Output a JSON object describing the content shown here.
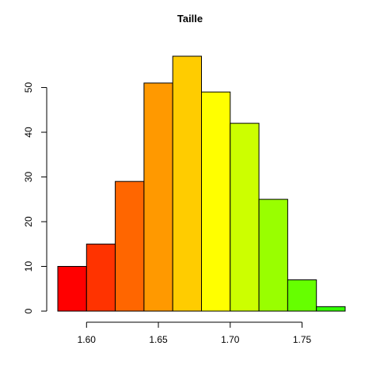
{
  "chart_data": {
    "type": "bar",
    "title": "Taille",
    "xlabel": "",
    "ylabel": "",
    "bins": [
      [
        1.58,
        1.6
      ],
      [
        1.6,
        1.62
      ],
      [
        1.62,
        1.64
      ],
      [
        1.64,
        1.66
      ],
      [
        1.66,
        1.68
      ],
      [
        1.68,
        1.7
      ],
      [
        1.7,
        1.72
      ],
      [
        1.72,
        1.74
      ],
      [
        1.74,
        1.76
      ],
      [
        1.76,
        1.78
      ]
    ],
    "values": [
      10,
      15,
      29,
      51,
      57,
      49,
      42,
      25,
      7,
      1
    ],
    "colors": [
      "#FF0000",
      "#FF3300",
      "#FF6600",
      "#FF9900",
      "#FFCC00",
      "#FFFF00",
      "#CCFF00",
      "#99FF00",
      "#66FF00",
      "#33FF00"
    ],
    "xlim": [
      1.58,
      1.78
    ],
    "ylim": [
      0,
      57
    ],
    "x_ticks": [
      {
        "value": 1.6,
        "label": "1.60"
      },
      {
        "value": 1.65,
        "label": "1.65"
      },
      {
        "value": 1.7,
        "label": "1.70"
      },
      {
        "value": 1.75,
        "label": "1.75"
      }
    ],
    "y_ticks": [
      {
        "value": 0,
        "label": "0"
      },
      {
        "value": 10,
        "label": "10"
      },
      {
        "value": 20,
        "label": "20"
      },
      {
        "value": 30,
        "label": "30"
      },
      {
        "value": 40,
        "label": "40"
      },
      {
        "value": 50,
        "label": "50"
      }
    ],
    "grid": false,
    "legend": "none"
  }
}
